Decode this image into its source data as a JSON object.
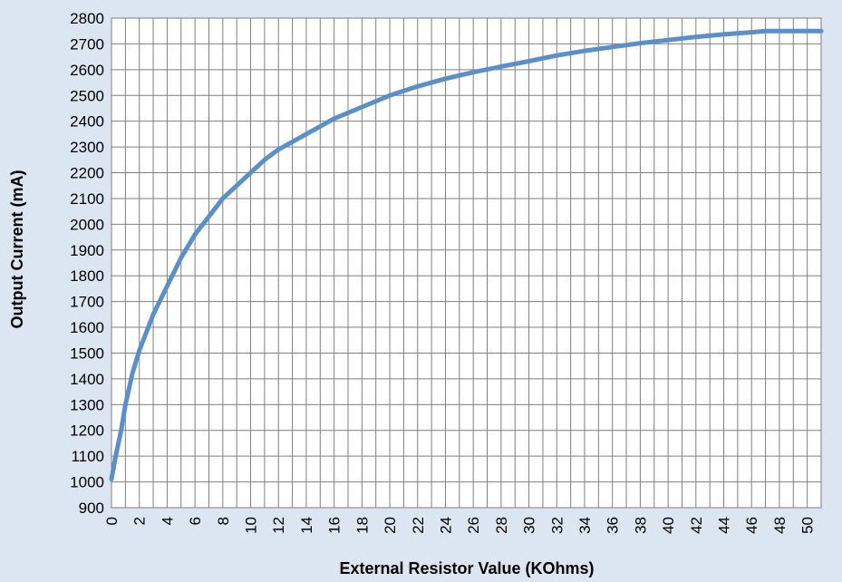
{
  "chart_data": {
    "type": "line",
    "title": "",
    "xlabel": "External Resistor Value (KOhms)",
    "ylabel": "Output Current (mA)",
    "xlim": [
      0,
      51
    ],
    "ylim": [
      900,
      2800
    ],
    "x_ticks": [
      0,
      2,
      4,
      6,
      8,
      10,
      12,
      14,
      16,
      18,
      20,
      22,
      24,
      26,
      28,
      30,
      32,
      34,
      36,
      38,
      40,
      42,
      44,
      46,
      48,
      50
    ],
    "y_ticks": [
      900,
      1000,
      1100,
      1200,
      1300,
      1400,
      1500,
      1600,
      1700,
      1800,
      1900,
      2000,
      2100,
      2200,
      2300,
      2400,
      2500,
      2600,
      2700,
      2800
    ],
    "grid": true,
    "legend": "none",
    "line_color": "#5b8fc7",
    "background_color": "#dce6f2",
    "plot_background": "#ffffff",
    "series": [
      {
        "x": [
          0,
          0.3,
          0.7,
          1,
          1.5,
          2,
          3,
          4,
          5,
          6,
          7,
          8,
          9,
          10,
          11,
          12,
          13,
          14,
          15,
          16,
          18,
          20,
          22,
          24,
          26,
          28,
          30,
          32,
          34,
          36,
          38,
          40,
          42,
          44,
          46,
          47,
          48,
          51
        ],
        "y": [
          1010,
          1100,
          1200,
          1300,
          1420,
          1510,
          1650,
          1760,
          1870,
          1960,
          2030,
          2100,
          2150,
          2200,
          2250,
          2290,
          2320,
          2350,
          2380,
          2410,
          2455,
          2500,
          2535,
          2565,
          2590,
          2612,
          2633,
          2655,
          2673,
          2688,
          2703,
          2715,
          2727,
          2737,
          2745,
          2750,
          2750,
          2750
        ]
      }
    ]
  }
}
